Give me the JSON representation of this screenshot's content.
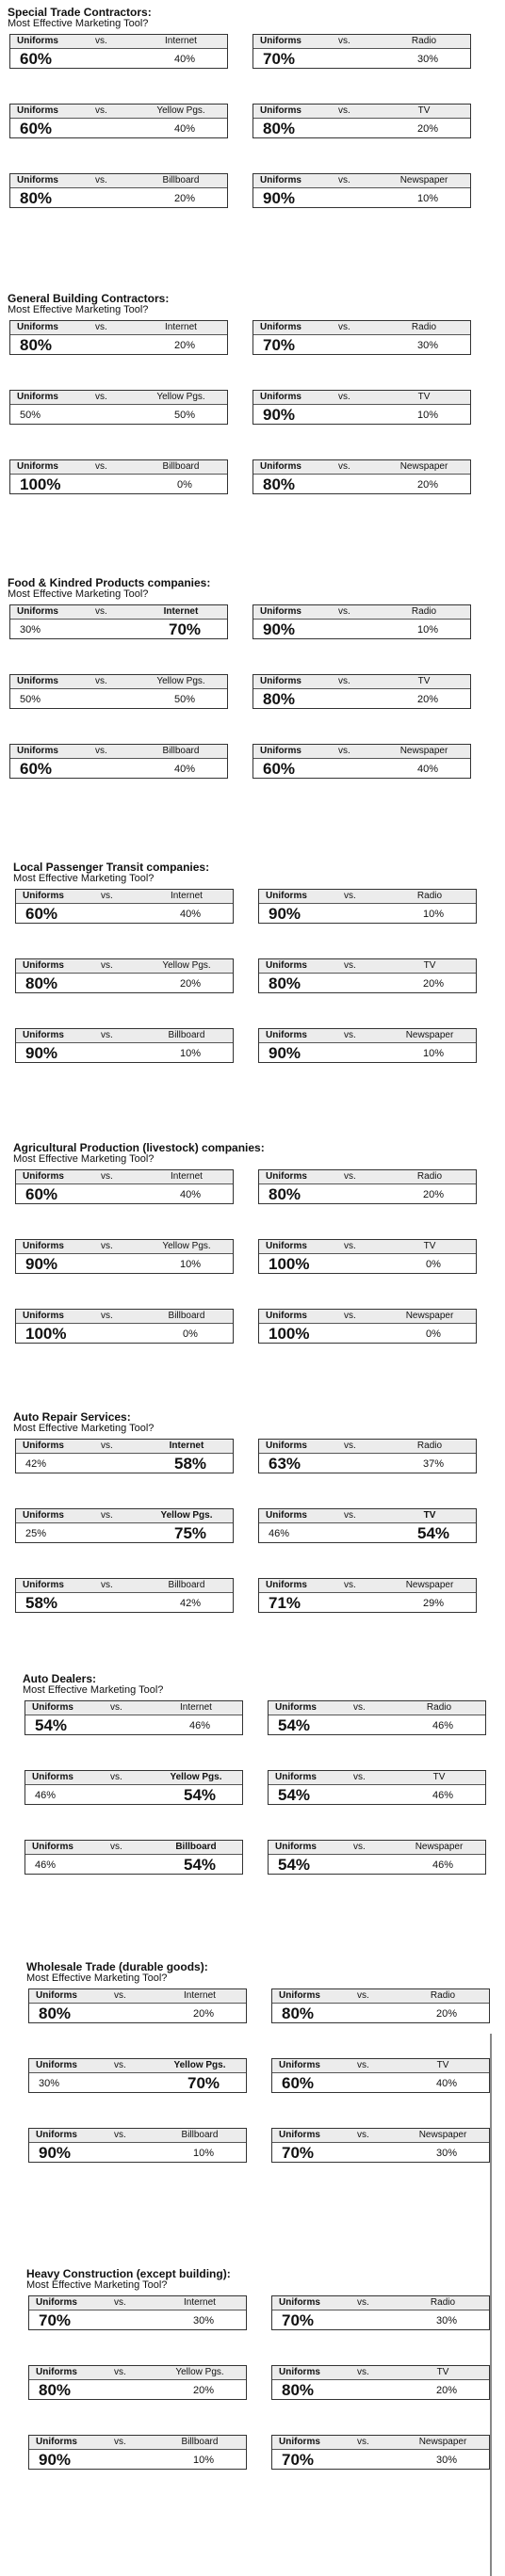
{
  "sections": [
    {
      "title": "Special Trade Contractors:",
      "subtitle": "Most Effective Marketing Tool?",
      "comparisons": [
        {
          "left_label": "Uniforms",
          "vs": "vs.",
          "right_label": "Internet",
          "left_value": "60%",
          "right_value": "40%",
          "winner": "left"
        },
        {
          "left_label": "Uniforms",
          "vs": "vs.",
          "right_label": "Radio",
          "left_value": "70%",
          "right_value": "30%",
          "winner": "left"
        },
        {
          "left_label": "Uniforms",
          "vs": "vs.",
          "right_label": "Yellow Pgs.",
          "left_value": "60%",
          "right_value": "40%",
          "winner": "left"
        },
        {
          "left_label": "Uniforms",
          "vs": "vs.",
          "right_label": "TV",
          "left_value": "80%",
          "right_value": "20%",
          "winner": "left"
        },
        {
          "left_label": "Uniforms",
          "vs": "vs.",
          "right_label": "Billboard",
          "left_value": "80%",
          "right_value": "20%",
          "winner": "left"
        },
        {
          "left_label": "Uniforms",
          "vs": "vs.",
          "right_label": "Newspaper",
          "left_value": "90%",
          "right_value": "10%",
          "winner": "left"
        }
      ]
    },
    {
      "title": "General Building Contractors:",
      "subtitle": "Most Effective Marketing Tool?",
      "comparisons": [
        {
          "left_label": "Uniforms",
          "vs": "vs.",
          "right_label": "Internet",
          "left_value": "80%",
          "right_value": "20%",
          "winner": "left"
        },
        {
          "left_label": "Uniforms",
          "vs": "vs.",
          "right_label": "Radio",
          "left_value": "70%",
          "right_value": "30%",
          "winner": "left"
        },
        {
          "left_label": "Uniforms",
          "vs": "vs.",
          "right_label": "Yellow Pgs.",
          "left_value": "50%",
          "right_value": "50%",
          "winner": "none"
        },
        {
          "left_label": "Uniforms",
          "vs": "vs.",
          "right_label": "TV",
          "left_value": "90%",
          "right_value": "10%",
          "winner": "left"
        },
        {
          "left_label": "Uniforms",
          "vs": "vs.",
          "right_label": "Billboard",
          "left_value": "100%",
          "right_value": "0%",
          "winner": "left"
        },
        {
          "left_label": "Uniforms",
          "vs": "vs.",
          "right_label": "Newspaper",
          "left_value": "80%",
          "right_value": "20%",
          "winner": "left"
        }
      ]
    },
    {
      "title": "Food & Kindred Products companies:",
      "subtitle": "Most Effective Marketing Tool?",
      "comparisons": [
        {
          "left_label": "Uniforms",
          "vs": "vs.",
          "right_label": "Internet",
          "left_value": "30%",
          "right_value": "70%",
          "winner": "right"
        },
        {
          "left_label": "Uniforms",
          "vs": "vs.",
          "right_label": "Radio",
          "left_value": "90%",
          "right_value": "10%",
          "winner": "left"
        },
        {
          "left_label": "Uniforms",
          "vs": "vs.",
          "right_label": "Yellow Pgs.",
          "left_value": "50%",
          "right_value": "50%",
          "winner": "none"
        },
        {
          "left_label": "Uniforms",
          "vs": "vs.",
          "right_label": "TV",
          "left_value": "80%",
          "right_value": "20%",
          "winner": "left"
        },
        {
          "left_label": "Uniforms",
          "vs": "vs.",
          "right_label": "Billboard",
          "left_value": "60%",
          "right_value": "40%",
          "winner": "left"
        },
        {
          "left_label": "Uniforms",
          "vs": "vs.",
          "right_label": "Newspaper",
          "left_value": "60%",
          "right_value": "40%",
          "winner": "left"
        }
      ]
    },
    {
      "title": "Local Passenger Transit companies:",
      "subtitle": "Most Effective Marketing Tool?",
      "comparisons": [
        {
          "left_label": "Uniforms",
          "vs": "vs.",
          "right_label": "Internet",
          "left_value": "60%",
          "right_value": "40%",
          "winner": "left"
        },
        {
          "left_label": "Uniforms",
          "vs": "vs.",
          "right_label": "Radio",
          "left_value": "90%",
          "right_value": "10%",
          "winner": "left"
        },
        {
          "left_label": "Uniforms",
          "vs": "vs.",
          "right_label": "Yellow Pgs.",
          "left_value": "80%",
          "right_value": "20%",
          "winner": "left"
        },
        {
          "left_label": "Uniforms",
          "vs": "vs.",
          "right_label": "TV",
          "left_value": "80%",
          "right_value": "20%",
          "winner": "left"
        },
        {
          "left_label": "Uniforms",
          "vs": "vs.",
          "right_label": "Billboard",
          "left_value": "90%",
          "right_value": "10%",
          "winner": "left"
        },
        {
          "left_label": "Uniforms",
          "vs": "vs.",
          "right_label": "Newspaper",
          "left_value": "90%",
          "right_value": "10%",
          "winner": "left"
        }
      ]
    },
    {
      "title": "Agricultural Production (livestock) companies:",
      "subtitle": "Most Effective Marketing Tool?",
      "comparisons": [
        {
          "left_label": "Uniforms",
          "vs": "vs.",
          "right_label": "Internet",
          "left_value": "60%",
          "right_value": "40%",
          "winner": "left"
        },
        {
          "left_label": "Uniforms",
          "vs": "vs.",
          "right_label": "Radio",
          "left_value": "80%",
          "right_value": "20%",
          "winner": "left"
        },
        {
          "left_label": "Uniforms",
          "vs": "vs.",
          "right_label": "Yellow Pgs.",
          "left_value": "90%",
          "right_value": "10%",
          "winner": "left"
        },
        {
          "left_label": "Uniforms",
          "vs": "vs.",
          "right_label": "TV",
          "left_value": "100%",
          "right_value": "0%",
          "winner": "left"
        },
        {
          "left_label": "Uniforms",
          "vs": "vs.",
          "right_label": "Billboard",
          "left_value": "100%",
          "right_value": "0%",
          "winner": "left"
        },
        {
          "left_label": "Uniforms",
          "vs": "vs.",
          "right_label": "Newspaper",
          "left_value": "100%",
          "right_value": "0%",
          "winner": "left"
        }
      ]
    },
    {
      "title": "Auto Repair Services:",
      "subtitle": "Most Effective Marketing Tool?",
      "comparisons": [
        {
          "left_label": "Uniforms",
          "vs": "vs.",
          "right_label": "Internet",
          "left_value": "42%",
          "right_value": "58%",
          "winner": "right"
        },
        {
          "left_label": "Uniforms",
          "vs": "vs.",
          "right_label": "Radio",
          "left_value": "63%",
          "right_value": "37%",
          "winner": "left"
        },
        {
          "left_label": "Uniforms",
          "vs": "vs.",
          "right_label": "Yellow Pgs.",
          "left_value": "25%",
          "right_value": "75%",
          "winner": "right"
        },
        {
          "left_label": "Uniforms",
          "vs": "vs.",
          "right_label": "TV",
          "left_value": "46%",
          "right_value": "54%",
          "winner": "right"
        },
        {
          "left_label": "Uniforms",
          "vs": "vs.",
          "right_label": "Billboard",
          "left_value": "58%",
          "right_value": "42%",
          "winner": "left"
        },
        {
          "left_label": "Uniforms",
          "vs": "vs.",
          "right_label": "Newspaper",
          "left_value": "71%",
          "right_value": "29%",
          "winner": "left"
        }
      ]
    },
    {
      "title": "Auto Dealers:",
      "subtitle": "Most Effective Marketing Tool?",
      "comparisons": [
        {
          "left_label": "Uniforms",
          "vs": "vs.",
          "right_label": "Internet",
          "left_value": "54%",
          "right_value": "46%",
          "winner": "left"
        },
        {
          "left_label": "Uniforms",
          "vs": "vs.",
          "right_label": "Radio",
          "left_value": "54%",
          "right_value": "46%",
          "winner": "left"
        },
        {
          "left_label": "Uniforms",
          "vs": "vs.",
          "right_label": "Yellow Pgs.",
          "left_value": "46%",
          "right_value": "54%",
          "winner": "right"
        },
        {
          "left_label": "Uniforms",
          "vs": "vs.",
          "right_label": "TV",
          "left_value": "54%",
          "right_value": "46%",
          "winner": "left"
        },
        {
          "left_label": "Uniforms",
          "vs": "vs.",
          "right_label": "Billboard",
          "left_value": "46%",
          "right_value": "54%",
          "winner": "right"
        },
        {
          "left_label": "Uniforms",
          "vs": "vs.",
          "right_label": "Newspaper",
          "left_value": "54%",
          "right_value": "46%",
          "winner": "left"
        }
      ]
    },
    {
      "title": "Wholesale Trade (durable goods):",
      "subtitle": "Most Effective Marketing Tool?",
      "comparisons": [
        {
          "left_label": "Uniforms",
          "vs": "vs.",
          "right_label": "Internet",
          "left_value": "80%",
          "right_value": "20%",
          "winner": "left"
        },
        {
          "left_label": "Uniforms",
          "vs": "vs.",
          "right_label": "Radio",
          "left_value": "80%",
          "right_value": "20%",
          "winner": "left"
        },
        {
          "left_label": "Uniforms",
          "vs": "vs.",
          "right_label": "Yellow Pgs.",
          "left_value": "30%",
          "right_value": "70%",
          "winner": "right"
        },
        {
          "left_label": "Uniforms",
          "vs": "vs.",
          "right_label": "TV",
          "left_value": "60%",
          "right_value": "40%",
          "winner": "left"
        },
        {
          "left_label": "Uniforms",
          "vs": "vs.",
          "right_label": "Billboard",
          "left_value": "90%",
          "right_value": "10%",
          "winner": "left"
        },
        {
          "left_label": "Uniforms",
          "vs": "vs.",
          "right_label": "Newspaper",
          "left_value": "70%",
          "right_value": "30%",
          "winner": "left"
        }
      ]
    },
    {
      "title": "Heavy Construction (except building):",
      "subtitle": "Most Effective Marketing Tool?",
      "comparisons": [
        {
          "left_label": "Uniforms",
          "vs": "vs.",
          "right_label": "Internet",
          "left_value": "70%",
          "right_value": "30%",
          "winner": "left"
        },
        {
          "left_label": "Uniforms",
          "vs": "vs.",
          "right_label": "Radio",
          "left_value": "70%",
          "right_value": "30%",
          "winner": "left"
        },
        {
          "left_label": "Uniforms",
          "vs": "vs.",
          "right_label": "Yellow Pgs.",
          "left_value": "80%",
          "right_value": "20%",
          "winner": "left"
        },
        {
          "left_label": "Uniforms",
          "vs": "vs.",
          "right_label": "TV",
          "left_value": "80%",
          "right_value": "20%",
          "winner": "left"
        },
        {
          "left_label": "Uniforms",
          "vs": "vs.",
          "right_label": "Billboard",
          "left_value": "90%",
          "right_value": "10%",
          "winner": "left"
        },
        {
          "left_label": "Uniforms",
          "vs": "vs.",
          "right_label": "Newspaper",
          "left_value": "70%",
          "right_value": "30%",
          "winner": "left"
        }
      ]
    }
  ]
}
